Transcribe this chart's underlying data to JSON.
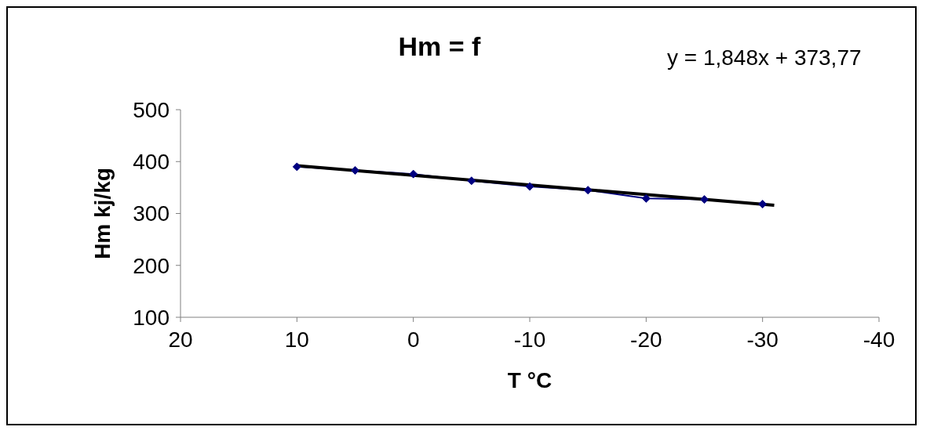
{
  "chart_data": {
    "type": "line",
    "title": "Hm = f",
    "xlabel": "T °C",
    "ylabel": "Hm kj/kg",
    "annotations": [
      "y = 1,848x + 373,77"
    ],
    "x": [
      10,
      5,
      0,
      -5,
      -10,
      -15,
      -20,
      -25,
      -30
    ],
    "series": [
      {
        "color": "#000080",
        "values": [
          390,
          383,
          376,
          363,
          352,
          345,
          329,
          327,
          318
        ],
        "marker": "diamond"
      },
      {
        "type": "line",
        "color": "#000000",
        "x": [
          10,
          -31
        ],
        "values": [
          392,
          316
        ],
        "marker": "none"
      }
    ],
    "xlim": [
      20,
      -40
    ],
    "xticks": [
      20,
      10,
      0,
      -10,
      -20,
      -30,
      -40
    ],
    "ylim": [
      100,
      500
    ],
    "yticks": [
      100,
      200,
      300,
      400,
      500
    ],
    "grid": false,
    "legend": false,
    "line_style": "solid"
  }
}
